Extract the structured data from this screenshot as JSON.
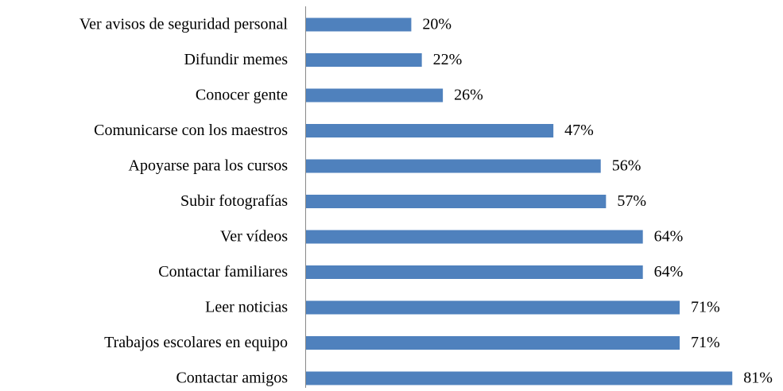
{
  "chart_data": {
    "type": "bar",
    "orientation": "horizontal",
    "categories": [
      "Ver avisos de seguridad personal",
      "Difundir memes",
      "Conocer gente",
      "Comunicarse con los maestros",
      "Apoyarse para los cursos",
      "Subir fotografías",
      "Ver vídeos",
      "Contactar familiares",
      "Leer noticias",
      "Trabajos escolares en equipo",
      "Contactar amigos"
    ],
    "values": [
      20,
      22,
      26,
      47,
      56,
      57,
      64,
      64,
      71,
      71,
      81
    ],
    "value_labels": [
      "20%",
      "22%",
      "26%",
      "47%",
      "56%",
      "57%",
      "64%",
      "64%",
      "71%",
      "71%",
      "81%"
    ],
    "color": "#4f81bd"
  }
}
